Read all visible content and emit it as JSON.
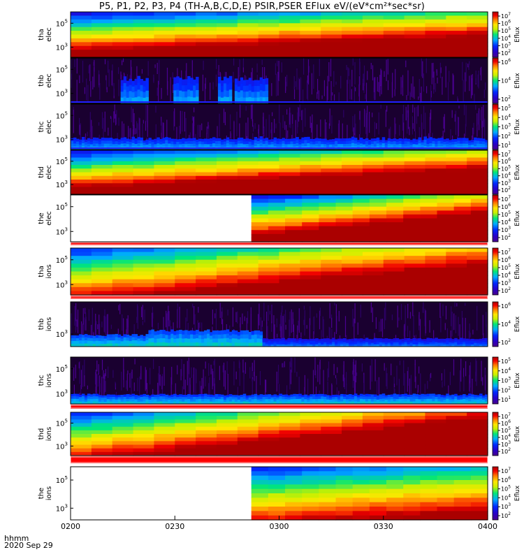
{
  "title": "P5, P1, P2, P3, P4 (TH-A,B,C,D,E) PSIR,PSER EFlux eV/(eV*cm²*sec*sr)",
  "time_axis": {
    "label_line1": "hhmm",
    "label_line2": "2020 Sep 29",
    "ticks": [
      "0200",
      "0230",
      "0300",
      "0330",
      "0400"
    ],
    "range_minutes": [
      0,
      120
    ]
  },
  "chart_data": {
    "type": "heatmap",
    "colorbar_label": "Eflux",
    "panels": [
      {
        "id": "tha-elec",
        "ylabel": [
          "tha",
          "elec"
        ],
        "yticks": [
          {
            "base": "10",
            "exp": "5"
          },
          {
            "base": "10",
            "exp": "3"
          }
        ],
        "zticks": [
          "7",
          "6",
          "5",
          "4",
          "3",
          "2"
        ],
        "pattern": "high",
        "trend": 0.35,
        "data_start_min": 0
      },
      {
        "id": "thb-elec",
        "ylabel": [
          "thb",
          "elec"
        ],
        "yticks": [
          {
            "base": "10",
            "exp": "5"
          },
          {
            "base": "10",
            "exp": "3"
          }
        ],
        "zticks": [
          "6",
          "4",
          "2"
        ],
        "pattern": "noise",
        "trend": 0,
        "data_start_min": 0,
        "bursts": [
          [
            14,
            22
          ],
          [
            29,
            36
          ],
          [
            42,
            46
          ],
          [
            47,
            56
          ]
        ]
      },
      {
        "id": "thc-elec",
        "ylabel": [
          "thc",
          "elec"
        ],
        "yticks": [
          {
            "base": "10",
            "exp": "5"
          },
          {
            "base": "10",
            "exp": "3"
          }
        ],
        "zticks": [
          "5",
          "4",
          "3",
          "2",
          "1"
        ],
        "pattern": "lowband",
        "trend": 0,
        "data_start_min": 0
      },
      {
        "id": "thd-elec",
        "ylabel": [
          "thd",
          "elec"
        ],
        "yticks": [
          {
            "base": "10",
            "exp": "5"
          },
          {
            "base": "10",
            "exp": "3"
          }
        ],
        "zticks": [
          "7",
          "6",
          "5",
          "4",
          "3",
          "2"
        ],
        "pattern": "high",
        "trend": 0.45,
        "data_start_min": 0
      },
      {
        "id": "the-elec",
        "ylabel": [
          "the",
          "elec"
        ],
        "yticks": [
          {
            "base": "10",
            "exp": "5"
          },
          {
            "base": "10",
            "exp": "3"
          }
        ],
        "zticks": [
          "7",
          "6",
          "5",
          "4",
          "3",
          "2"
        ],
        "pattern": "high",
        "trend": 0.5,
        "data_start_min": 52
      },
      {
        "id": "tha-ions",
        "ylabel": [
          "tha",
          "ions"
        ],
        "yticks": [
          {
            "base": "10",
            "exp": "5"
          },
          {
            "base": "10",
            "exp": "3"
          }
        ],
        "zticks": [
          "7",
          "6",
          "5",
          "4",
          "3",
          "2"
        ],
        "pattern": "mid",
        "trend": 0.55,
        "data_start_min": 0
      },
      {
        "id": "thb-ions",
        "ylabel": [
          "thb",
          "ions"
        ],
        "yticks": [
          {
            "base": "10",
            "exp": "3"
          }
        ],
        "zticks": [
          "6",
          "4",
          "2"
        ],
        "pattern": "ionband",
        "trend": 0,
        "data_start_min": 0
      },
      {
        "id": "thc-ions",
        "ylabel": [
          "thc",
          "ions"
        ],
        "yticks": [
          {
            "base": "10",
            "exp": "5"
          },
          {
            "base": "10",
            "exp": "3"
          }
        ],
        "zticks": [
          "5",
          "4",
          "3",
          "2",
          "1"
        ],
        "pattern": "ionlow",
        "trend": 0,
        "data_start_min": 0
      },
      {
        "id": "thd-ions",
        "ylabel": [
          "thd",
          "ions"
        ],
        "yticks": [
          {
            "base": "10",
            "exp": "5"
          },
          {
            "base": "10",
            "exp": "3"
          }
        ],
        "zticks": [
          "7",
          "6",
          "5",
          "4",
          "3",
          "2"
        ],
        "pattern": "mid",
        "trend": 0.7,
        "data_start_min": 0
      },
      {
        "id": "the-ions",
        "ylabel": [
          "the",
          "ions"
        ],
        "yticks": [
          {
            "base": "10",
            "exp": "5"
          },
          {
            "base": "10",
            "exp": "3"
          }
        ],
        "zticks": [
          "7",
          "6",
          "5",
          "4",
          "3",
          "2"
        ],
        "pattern": "mid",
        "trend": 0.2,
        "data_start_min": 52
      }
    ]
  }
}
